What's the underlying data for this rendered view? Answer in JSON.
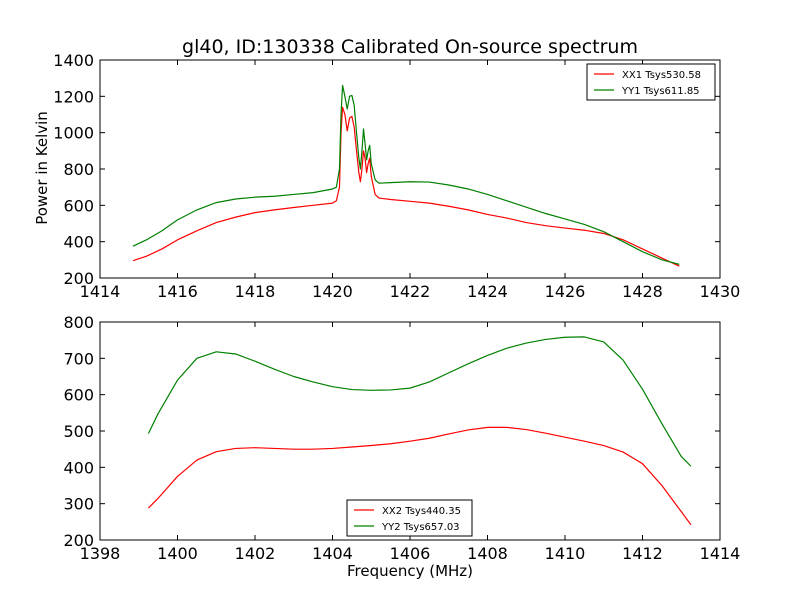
{
  "title": "gl40, ID:130338 Calibrated On-source spectrum",
  "colors": {
    "red": "#ff0000",
    "green": "#008000",
    "axis": "#000000"
  },
  "chart_data": [
    {
      "type": "line",
      "panel": "top",
      "title": "gl40, ID:130338 Calibrated On-source spectrum",
      "xlabel": "",
      "ylabel": "Power in Kelvin",
      "xlim": [
        1414,
        1430
      ],
      "ylim": [
        200,
        1400
      ],
      "xticks": [
        1414,
        1416,
        1418,
        1420,
        1422,
        1424,
        1426,
        1428,
        1430
      ],
      "yticks": [
        200,
        400,
        600,
        800,
        1000,
        1200,
        1400
      ],
      "legend_position": "top-right",
      "grid": false,
      "series": [
        {
          "name": "XX1 Tsys530.58",
          "color": "#ff0000",
          "points": [
            [
              1414.85,
              295
            ],
            [
              1415.2,
              320
            ],
            [
              1415.6,
              360
            ],
            [
              1416.0,
              410
            ],
            [
              1416.5,
              460
            ],
            [
              1417.0,
              505
            ],
            [
              1417.5,
              535
            ],
            [
              1418.0,
              560
            ],
            [
              1418.5,
              575
            ],
            [
              1419.0,
              588
            ],
            [
              1419.5,
              600
            ],
            [
              1420.0,
              612
            ],
            [
              1420.1,
              625
            ],
            [
              1420.18,
              700
            ],
            [
              1420.22,
              1000
            ],
            [
              1420.26,
              1140
            ],
            [
              1420.32,
              1100
            ],
            [
              1420.38,
              1010
            ],
            [
              1420.44,
              1080
            ],
            [
              1420.5,
              1090
            ],
            [
              1420.56,
              1030
            ],
            [
              1420.62,
              900
            ],
            [
              1420.68,
              780
            ],
            [
              1420.72,
              730
            ],
            [
              1420.76,
              800
            ],
            [
              1420.8,
              900
            ],
            [
              1420.84,
              860
            ],
            [
              1420.88,
              780
            ],
            [
              1420.92,
              830
            ],
            [
              1420.96,
              860
            ],
            [
              1421.0,
              760
            ],
            [
              1421.1,
              660
            ],
            [
              1421.2,
              640
            ],
            [
              1421.5,
              632
            ],
            [
              1422.0,
              622
            ],
            [
              1422.5,
              612
            ],
            [
              1423.0,
              595
            ],
            [
              1423.5,
              575
            ],
            [
              1424.0,
              550
            ],
            [
              1424.5,
              530
            ],
            [
              1425.0,
              505
            ],
            [
              1425.5,
              488
            ],
            [
              1426.0,
              475
            ],
            [
              1426.5,
              463
            ],
            [
              1427.0,
              445
            ],
            [
              1427.5,
              410
            ],
            [
              1428.0,
              360
            ],
            [
              1428.5,
              310
            ],
            [
              1428.95,
              265
            ]
          ]
        },
        {
          "name": "YY1 Tsys611.85",
          "color": "#008000",
          "points": [
            [
              1414.85,
              375
            ],
            [
              1415.2,
              410
            ],
            [
              1415.6,
              460
            ],
            [
              1416.0,
              520
            ],
            [
              1416.5,
              575
            ],
            [
              1417.0,
              615
            ],
            [
              1417.5,
              635
            ],
            [
              1418.0,
              645
            ],
            [
              1418.5,
              650
            ],
            [
              1419.0,
              660
            ],
            [
              1419.5,
              670
            ],
            [
              1420.0,
              690
            ],
            [
              1420.1,
              700
            ],
            [
              1420.18,
              800
            ],
            [
              1420.22,
              1100
            ],
            [
              1420.26,
              1260
            ],
            [
              1420.32,
              1200
            ],
            [
              1420.38,
              1130
            ],
            [
              1420.44,
              1200
            ],
            [
              1420.5,
              1205
            ],
            [
              1420.56,
              1150
            ],
            [
              1420.62,
              1000
            ],
            [
              1420.68,
              860
            ],
            [
              1420.72,
              800
            ],
            [
              1420.76,
              900
            ],
            [
              1420.8,
              1020
            ],
            [
              1420.84,
              940
            ],
            [
              1420.88,
              850
            ],
            [
              1420.92,
              900
            ],
            [
              1420.96,
              930
            ],
            [
              1421.0,
              830
            ],
            [
              1421.1,
              740
            ],
            [
              1421.2,
              722
            ],
            [
              1421.5,
              725
            ],
            [
              1422.0,
              730
            ],
            [
              1422.5,
              728
            ],
            [
              1423.0,
              712
            ],
            [
              1423.5,
              690
            ],
            [
              1424.0,
              660
            ],
            [
              1424.5,
              625
            ],
            [
              1425.0,
              590
            ],
            [
              1425.5,
              555
            ],
            [
              1426.0,
              525
            ],
            [
              1426.5,
              495
            ],
            [
              1427.0,
              455
            ],
            [
              1427.5,
              400
            ],
            [
              1428.0,
              345
            ],
            [
              1428.5,
              300
            ],
            [
              1428.95,
              275
            ]
          ]
        }
      ]
    },
    {
      "type": "line",
      "panel": "bottom",
      "title": "",
      "xlabel": "Frequency (MHz)",
      "ylabel": "",
      "xlim": [
        1398,
        1414
      ],
      "ylim": [
        200,
        800
      ],
      "xticks": [
        1398,
        1400,
        1402,
        1404,
        1406,
        1408,
        1410,
        1412,
        1414
      ],
      "yticks": [
        200,
        300,
        400,
        500,
        600,
        700,
        800
      ],
      "legend_position": "bottom-center",
      "grid": false,
      "series": [
        {
          "name": "XX2 Tsys440.35",
          "color": "#ff0000",
          "points": [
            [
              1399.25,
              288
            ],
            [
              1399.5,
              315
            ],
            [
              1400.0,
              375
            ],
            [
              1400.5,
              420
            ],
            [
              1401.0,
              443
            ],
            [
              1401.5,
              452
            ],
            [
              1402.0,
              454
            ],
            [
              1402.5,
              452
            ],
            [
              1403.0,
              450
            ],
            [
              1403.5,
              450
            ],
            [
              1404.0,
              452
            ],
            [
              1404.5,
              456
            ],
            [
              1405.0,
              460
            ],
            [
              1405.5,
              465
            ],
            [
              1406.0,
              472
            ],
            [
              1406.5,
              480
            ],
            [
              1407.0,
              492
            ],
            [
              1407.5,
              503
            ],
            [
              1408.0,
              510
            ],
            [
              1408.5,
              510
            ],
            [
              1409.0,
              504
            ],
            [
              1409.5,
              494
            ],
            [
              1410.0,
              483
            ],
            [
              1410.5,
              472
            ],
            [
              1411.0,
              460
            ],
            [
              1411.5,
              442
            ],
            [
              1412.0,
              410
            ],
            [
              1412.5,
              350
            ],
            [
              1413.0,
              278
            ],
            [
              1413.25,
              242
            ]
          ]
        },
        {
          "name": "YY2 Tsys657.03",
          "color": "#008000",
          "points": [
            [
              1399.25,
              493
            ],
            [
              1399.5,
              548
            ],
            [
              1400.0,
              640
            ],
            [
              1400.5,
              700
            ],
            [
              1401.0,
              718
            ],
            [
              1401.5,
              712
            ],
            [
              1402.0,
              692
            ],
            [
              1402.5,
              670
            ],
            [
              1403.0,
              650
            ],
            [
              1403.5,
              635
            ],
            [
              1404.0,
              622
            ],
            [
              1404.5,
              614
            ],
            [
              1405.0,
              612
            ],
            [
              1405.5,
              613
            ],
            [
              1406.0,
              618
            ],
            [
              1406.5,
              635
            ],
            [
              1407.0,
              660
            ],
            [
              1407.5,
              685
            ],
            [
              1408.0,
              708
            ],
            [
              1408.5,
              728
            ],
            [
              1409.0,
              742
            ],
            [
              1409.5,
              752
            ],
            [
              1410.0,
              758
            ],
            [
              1410.5,
              759
            ],
            [
              1411.0,
              745
            ],
            [
              1411.5,
              695
            ],
            [
              1412.0,
              615
            ],
            [
              1412.5,
              520
            ],
            [
              1413.0,
              430
            ],
            [
              1413.25,
              403
            ]
          ]
        }
      ]
    }
  ]
}
